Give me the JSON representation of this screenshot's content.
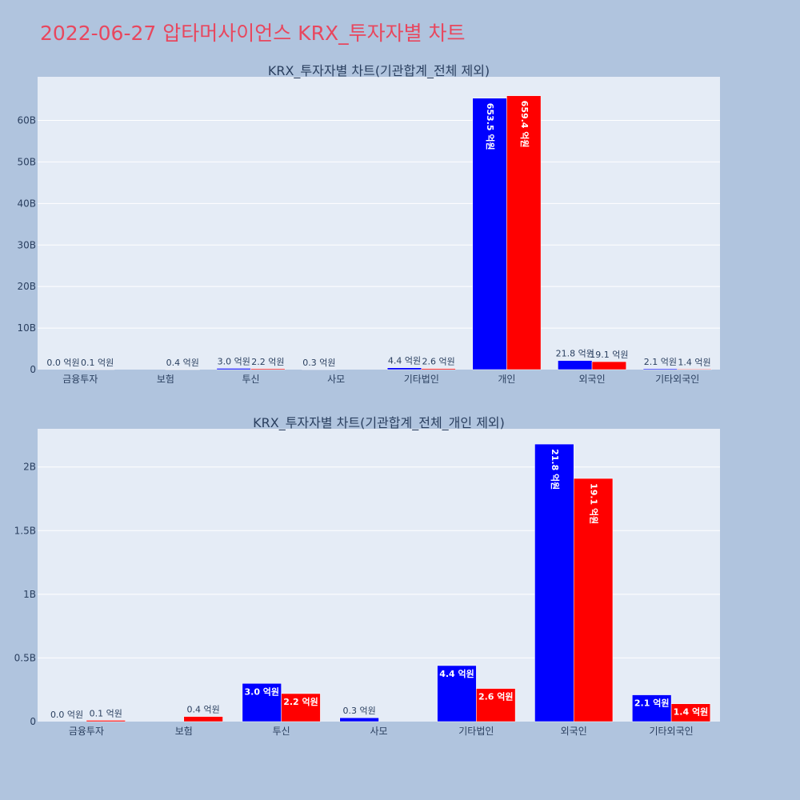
{
  "page": {
    "title": "2022-06-27 압타머사이언스 KRX_투자자별 차트"
  },
  "colors": {
    "series_a": "#0000ff",
    "series_b": "#ff0000",
    "plot_bg": "#e5ecf6",
    "page_bg": "#b0c4de",
    "title": "#e8475e"
  },
  "chart_data": [
    {
      "type": "bar",
      "title": "KRX_투자자별 차트(기관합계_전체 제외)",
      "categories": [
        "금융투자",
        "보험",
        "투신",
        "사모",
        "기타법인",
        "개인",
        "외국인",
        "기타외국인"
      ],
      "series": [
        {
          "values": [
            0.0,
            0,
            0.3,
            0.03,
            0.44,
            65.35,
            2.18,
            0.21
          ],
          "labels": [
            "0.0 억원",
            "",
            "3.0 억원",
            "0.3 억원",
            "4.4 억원",
            "653.5 억원",
            "21.8 억원",
            "2.1 억원"
          ]
        },
        {
          "values": [
            0.01,
            0.04,
            0.22,
            0,
            0.26,
            65.94,
            1.91,
            0.14
          ],
          "labels": [
            "0.1 억원",
            "0.4 억원",
            "2.2 억원",
            "",
            "2.6 억원",
            "659.4 억원",
            "19.1 억원",
            "1.4 억원"
          ]
        }
      ],
      "yticks": [
        0,
        10,
        20,
        30,
        40,
        50,
        60
      ],
      "ytick_labels": [
        "0",
        "10B",
        "20B",
        "30B",
        "40B",
        "50B",
        "60B"
      ],
      "ylim": [
        0,
        70.5
      ],
      "grid": true,
      "legend": "none"
    },
    {
      "type": "bar",
      "title": "KRX_투자자별 차트(기관합계_전체_개인 제외)",
      "categories": [
        "금융투자",
        "보험",
        "투신",
        "사모",
        "기타법인",
        "외국인",
        "기타외국인"
      ],
      "series": [
        {
          "values": [
            0.0,
            0,
            0.3,
            0.03,
            0.44,
            2.18,
            0.21
          ],
          "labels": [
            "0.0 억원",
            "",
            "3.0 억원",
            "0.3 억원",
            "4.4 억원",
            "21.8 억원",
            "2.1 억원"
          ]
        },
        {
          "values": [
            0.01,
            0.04,
            0.22,
            0,
            0.26,
            1.91,
            0.14
          ],
          "labels": [
            "0.1 억원",
            "0.4 억원",
            "2.2 억원",
            "",
            "2.6 억원",
            "19.1 억원",
            "1.4 억원"
          ]
        }
      ],
      "yticks": [
        0,
        0.5,
        1,
        1.5,
        2
      ],
      "ytick_labels": [
        "0",
        "0.5B",
        "1B",
        "1.5B",
        "2B"
      ],
      "ylim": [
        0,
        2.3
      ],
      "grid": true,
      "legend": "none"
    }
  ]
}
